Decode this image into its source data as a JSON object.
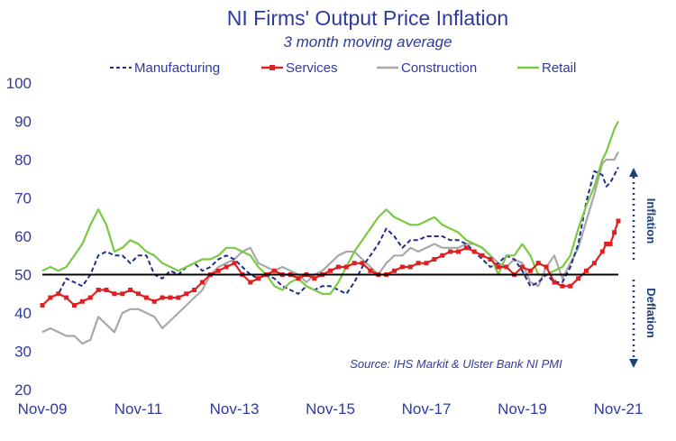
{
  "chart_data": {
    "type": "line",
    "title": "NI Firms' Output Price Inflation",
    "subtitle": "3 month moving average",
    "source": "Source: IHS Markit & Ulster Bank NI PMI",
    "annotations": {
      "upper": "Inflation",
      "lower": "Deflation"
    },
    "reference_line": 50,
    "ylim": [
      20,
      100
    ],
    "yticks": [
      20,
      30,
      40,
      50,
      60,
      70,
      80,
      90,
      100
    ],
    "xlim": [
      0,
      144
    ],
    "xticks": [
      {
        "label": "Nov-09",
        "x": 0
      },
      {
        "label": "Nov-11",
        "x": 24
      },
      {
        "label": "Nov-13",
        "x": 48
      },
      {
        "label": "Nov-15",
        "x": 72
      },
      {
        "label": "Nov-17",
        "x": 96
      },
      {
        "label": "Nov-19",
        "x": 120
      },
      {
        "label": "Nov-21",
        "x": 144
      }
    ],
    "legend_position": "top",
    "series": [
      {
        "name": "Manufacturing",
        "color": "#1f2e8c",
        "style": "dashed",
        "points": [
          [
            0,
            42
          ],
          [
            2,
            44
          ],
          [
            4,
            45
          ],
          [
            6,
            49
          ],
          [
            8,
            48
          ],
          [
            10,
            47
          ],
          [
            12,
            50
          ],
          [
            14,
            55
          ],
          [
            16,
            56
          ],
          [
            18,
            55
          ],
          [
            20,
            55
          ],
          [
            22,
            53
          ],
          [
            24,
            55
          ],
          [
            26,
            55
          ],
          [
            28,
            50
          ],
          [
            30,
            49
          ],
          [
            32,
            51
          ],
          [
            34,
            50
          ],
          [
            36,
            52
          ],
          [
            38,
            53
          ],
          [
            40,
            51
          ],
          [
            42,
            52
          ],
          [
            44,
            54
          ],
          [
            46,
            55
          ],
          [
            48,
            54
          ],
          [
            50,
            52
          ],
          [
            52,
            50
          ],
          [
            54,
            49
          ],
          [
            56,
            50
          ],
          [
            58,
            49
          ],
          [
            60,
            47
          ],
          [
            62,
            46
          ],
          [
            64,
            45
          ],
          [
            66,
            47
          ],
          [
            68,
            46
          ],
          [
            70,
            47
          ],
          [
            72,
            47
          ],
          [
            74,
            46
          ],
          [
            76,
            45
          ],
          [
            78,
            48
          ],
          [
            80,
            52
          ],
          [
            82,
            55
          ],
          [
            84,
            58
          ],
          [
            86,
            62
          ],
          [
            88,
            60
          ],
          [
            90,
            57
          ],
          [
            92,
            59
          ],
          [
            94,
            59
          ],
          [
            96,
            60
          ],
          [
            98,
            60
          ],
          [
            100,
            60
          ],
          [
            102,
            59
          ],
          [
            104,
            59
          ],
          [
            106,
            58
          ],
          [
            108,
            56
          ],
          [
            110,
            54
          ],
          [
            112,
            52
          ],
          [
            114,
            53
          ],
          [
            116,
            55
          ],
          [
            118,
            54
          ],
          [
            120,
            51
          ],
          [
            122,
            47
          ],
          [
            124,
            48
          ],
          [
            126,
            50
          ],
          [
            128,
            48
          ],
          [
            130,
            48
          ],
          [
            132,
            52
          ],
          [
            134,
            58
          ],
          [
            136,
            69
          ],
          [
            138,
            77
          ],
          [
            140,
            76
          ],
          [
            141,
            73
          ],
          [
            142,
            74
          ],
          [
            143,
            76
          ],
          [
            144,
            78
          ]
        ]
      },
      {
        "name": "Services",
        "color": "#e02020",
        "style": "solid",
        "marker": "square",
        "points": [
          [
            0,
            42
          ],
          [
            2,
            44
          ],
          [
            4,
            45
          ],
          [
            6,
            44
          ],
          [
            8,
            42
          ],
          [
            10,
            43
          ],
          [
            12,
            44
          ],
          [
            14,
            46
          ],
          [
            16,
            46
          ],
          [
            18,
            45
          ],
          [
            20,
            45
          ],
          [
            22,
            46
          ],
          [
            24,
            45
          ],
          [
            26,
            44
          ],
          [
            28,
            43
          ],
          [
            30,
            44
          ],
          [
            32,
            44
          ],
          [
            34,
            44
          ],
          [
            36,
            45
          ],
          [
            38,
            46
          ],
          [
            40,
            48
          ],
          [
            42,
            50
          ],
          [
            44,
            51
          ],
          [
            46,
            52
          ],
          [
            48,
            53
          ],
          [
            50,
            50
          ],
          [
            52,
            48
          ],
          [
            54,
            49
          ],
          [
            56,
            50
          ],
          [
            58,
            51
          ],
          [
            60,
            50
          ],
          [
            62,
            50
          ],
          [
            64,
            49
          ],
          [
            66,
            50
          ],
          [
            68,
            49
          ],
          [
            70,
            50
          ],
          [
            72,
            51
          ],
          [
            74,
            52
          ],
          [
            76,
            52
          ],
          [
            78,
            53
          ],
          [
            80,
            53
          ],
          [
            82,
            51
          ],
          [
            84,
            50
          ],
          [
            86,
            50
          ],
          [
            88,
            51
          ],
          [
            90,
            52
          ],
          [
            92,
            52
          ],
          [
            94,
            53
          ],
          [
            96,
            53
          ],
          [
            98,
            54
          ],
          [
            100,
            55
          ],
          [
            102,
            56
          ],
          [
            104,
            56
          ],
          [
            106,
            57
          ],
          [
            108,
            56
          ],
          [
            110,
            55
          ],
          [
            112,
            54
          ],
          [
            114,
            52
          ],
          [
            116,
            52
          ],
          [
            118,
            50
          ],
          [
            120,
            52
          ],
          [
            122,
            51
          ],
          [
            124,
            53
          ],
          [
            126,
            52
          ],
          [
            128,
            48
          ],
          [
            130,
            47
          ],
          [
            132,
            47
          ],
          [
            134,
            49
          ],
          [
            136,
            51
          ],
          [
            138,
            53
          ],
          [
            140,
            56
          ],
          [
            141,
            58
          ],
          [
            142,
            58
          ],
          [
            143,
            61
          ],
          [
            144,
            64
          ]
        ]
      },
      {
        "name": "Construction",
        "color": "#a8a8a8",
        "style": "solid",
        "points": [
          [
            0,
            35
          ],
          [
            2,
            36
          ],
          [
            4,
            35
          ],
          [
            6,
            34
          ],
          [
            8,
            34
          ],
          [
            10,
            32
          ],
          [
            12,
            33
          ],
          [
            14,
            39
          ],
          [
            16,
            37
          ],
          [
            18,
            35
          ],
          [
            20,
            40
          ],
          [
            22,
            41
          ],
          [
            24,
            41
          ],
          [
            26,
            40
          ],
          [
            28,
            39
          ],
          [
            30,
            36
          ],
          [
            32,
            38
          ],
          [
            34,
            40
          ],
          [
            36,
            42
          ],
          [
            38,
            44
          ],
          [
            40,
            46
          ],
          [
            42,
            50
          ],
          [
            44,
            52
          ],
          [
            46,
            53
          ],
          [
            48,
            54
          ],
          [
            50,
            56
          ],
          [
            52,
            57
          ],
          [
            54,
            53
          ],
          [
            56,
            52
          ],
          [
            58,
            51
          ],
          [
            60,
            52
          ],
          [
            62,
            51
          ],
          [
            64,
            50
          ],
          [
            66,
            48
          ],
          [
            68,
            50
          ],
          [
            70,
            51
          ],
          [
            72,
            53
          ],
          [
            74,
            55
          ],
          [
            76,
            56
          ],
          [
            78,
            56
          ],
          [
            80,
            54
          ],
          [
            82,
            52
          ],
          [
            84,
            50
          ],
          [
            86,
            53
          ],
          [
            88,
            55
          ],
          [
            90,
            55
          ],
          [
            92,
            57
          ],
          [
            94,
            56
          ],
          [
            96,
            57
          ],
          [
            98,
            58
          ],
          [
            100,
            57
          ],
          [
            102,
            57
          ],
          [
            104,
            57
          ],
          [
            106,
            58
          ],
          [
            108,
            58
          ],
          [
            110,
            57
          ],
          [
            112,
            55
          ],
          [
            114,
            53
          ],
          [
            116,
            52
          ],
          [
            118,
            54
          ],
          [
            120,
            53
          ],
          [
            122,
            48
          ],
          [
            124,
            47
          ],
          [
            126,
            52
          ],
          [
            128,
            55
          ],
          [
            130,
            49
          ],
          [
            132,
            53
          ],
          [
            134,
            57
          ],
          [
            136,
            64
          ],
          [
            138,
            71
          ],
          [
            140,
            79
          ],
          [
            141,
            80
          ],
          [
            142,
            80
          ],
          [
            143,
            80
          ],
          [
            144,
            82
          ]
        ]
      },
      {
        "name": "Retail",
        "color": "#7ac943",
        "style": "solid",
        "points": [
          [
            0,
            51
          ],
          [
            2,
            52
          ],
          [
            4,
            51
          ],
          [
            6,
            52
          ],
          [
            8,
            55
          ],
          [
            10,
            58
          ],
          [
            12,
            63
          ],
          [
            14,
            67
          ],
          [
            16,
            63
          ],
          [
            18,
            56
          ],
          [
            20,
            57
          ],
          [
            22,
            59
          ],
          [
            24,
            58
          ],
          [
            26,
            56
          ],
          [
            28,
            55
          ],
          [
            30,
            53
          ],
          [
            32,
            52
          ],
          [
            34,
            51
          ],
          [
            36,
            52
          ],
          [
            38,
            53
          ],
          [
            40,
            54
          ],
          [
            42,
            54
          ],
          [
            44,
            55
          ],
          [
            46,
            57
          ],
          [
            48,
            57
          ],
          [
            50,
            56
          ],
          [
            52,
            55
          ],
          [
            54,
            52
          ],
          [
            56,
            50
          ],
          [
            58,
            47
          ],
          [
            60,
            46
          ],
          [
            62,
            48
          ],
          [
            64,
            49
          ],
          [
            66,
            47
          ],
          [
            68,
            46
          ],
          [
            70,
            45
          ],
          [
            72,
            45
          ],
          [
            74,
            48
          ],
          [
            76,
            52
          ],
          [
            78,
            56
          ],
          [
            80,
            59
          ],
          [
            82,
            62
          ],
          [
            84,
            65
          ],
          [
            86,
            67
          ],
          [
            88,
            65
          ],
          [
            90,
            64
          ],
          [
            92,
            63
          ],
          [
            94,
            63
          ],
          [
            96,
            64
          ],
          [
            98,
            65
          ],
          [
            100,
            63
          ],
          [
            102,
            62
          ],
          [
            104,
            61
          ],
          [
            106,
            59
          ],
          [
            108,
            58
          ],
          [
            110,
            57
          ],
          [
            112,
            55
          ],
          [
            114,
            50
          ],
          [
            116,
            55
          ],
          [
            118,
            55
          ],
          [
            120,
            58
          ],
          [
            122,
            55
          ],
          [
            124,
            50
          ],
          [
            126,
            50
          ],
          [
            128,
            51
          ],
          [
            130,
            52
          ],
          [
            132,
            55
          ],
          [
            134,
            62
          ],
          [
            136,
            68
          ],
          [
            138,
            73
          ],
          [
            140,
            80
          ],
          [
            141,
            82
          ],
          [
            142,
            85
          ],
          [
            143,
            88
          ],
          [
            144,
            90
          ]
        ]
      }
    ]
  }
}
